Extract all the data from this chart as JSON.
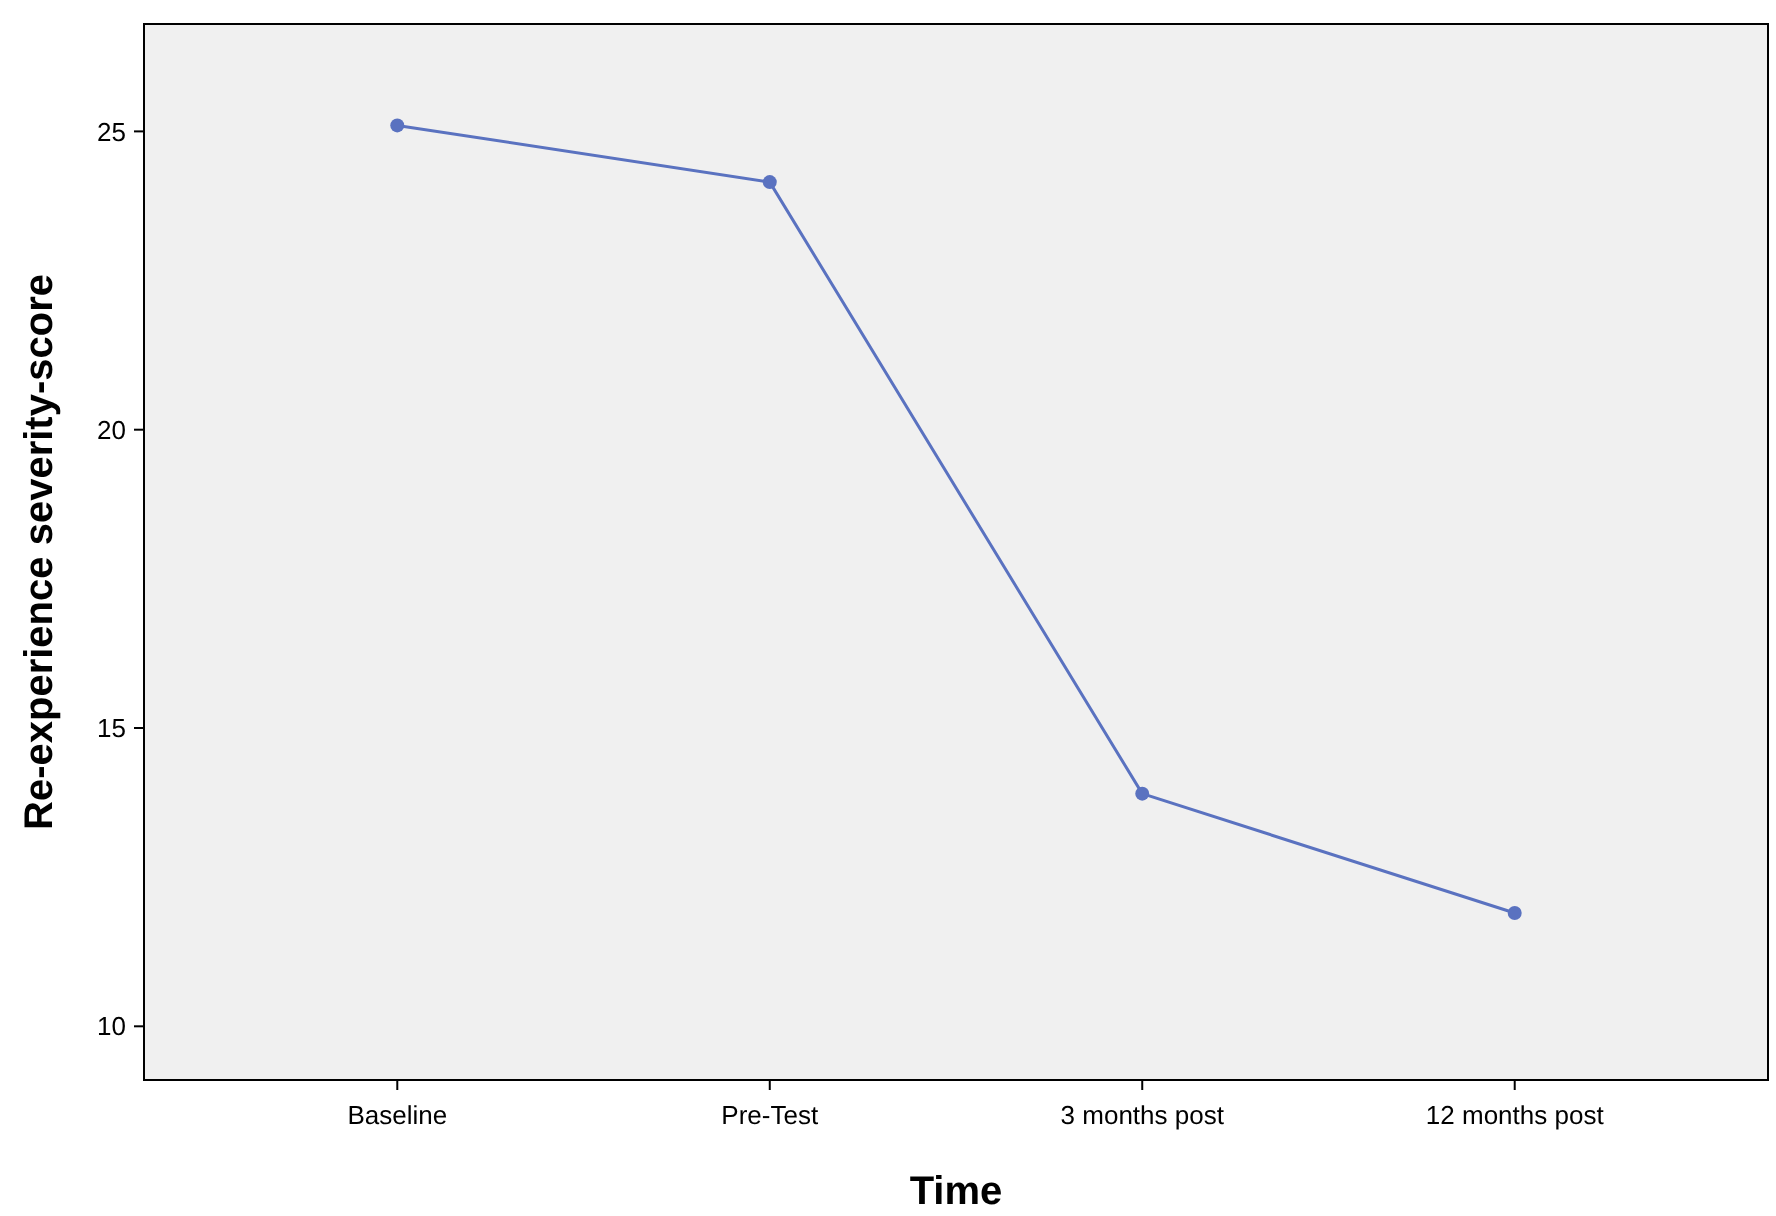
{
  "chart_data": {
    "type": "line",
    "xlabel": "Time",
    "ylabel": "Re-experience severity-score",
    "categories": [
      "Baseline",
      "Pre-Test",
      "3 months post",
      "12 months post"
    ],
    "values": [
      25.1,
      24.15,
      13.9,
      11.9
    ],
    "color": "#5a72c0",
    "ylim": [
      9.1,
      26.8
    ],
    "yticks": [
      10,
      15,
      20,
      25
    ],
    "grid": false,
    "marker": "circle",
    "line_style": "solid"
  }
}
